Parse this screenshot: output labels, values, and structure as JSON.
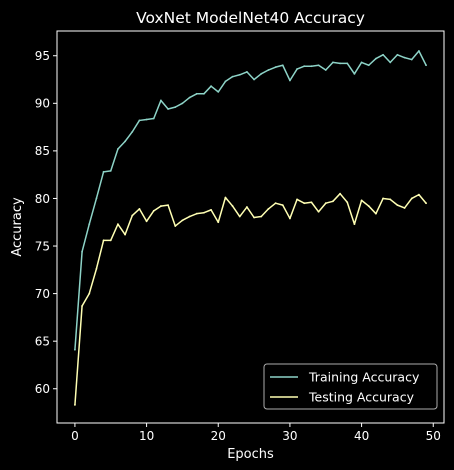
{
  "chart_data": {
    "type": "line",
    "title": "VoxNet ModelNet40 Accuracy",
    "xlabel": "Epochs",
    "ylabel": "Accuracy",
    "xlim": [
      -2.5,
      51.5
    ],
    "ylim": [
      56.4,
      97.6
    ],
    "xticks": [
      0,
      10,
      20,
      30,
      40,
      50
    ],
    "yticks": [
      60,
      65,
      70,
      75,
      80,
      85,
      90,
      95
    ],
    "grid": false,
    "legend_position": "lower-right",
    "x": [
      0,
      1,
      2,
      3,
      4,
      5,
      6,
      7,
      8,
      9,
      10,
      11,
      12,
      13,
      14,
      15,
      16,
      17,
      18,
      19,
      20,
      21,
      22,
      23,
      24,
      25,
      26,
      27,
      28,
      29,
      30,
      31,
      32,
      33,
      34,
      35,
      36,
      37,
      38,
      39,
      40,
      41,
      42,
      43,
      44,
      45,
      46,
      47,
      48,
      49
    ],
    "series": [
      {
        "name": "Training Accuracy",
        "color": "#8dd3c7",
        "values": [
          64.1,
          74.4,
          77.3,
          80.0,
          82.8,
          82.9,
          85.2,
          86.0,
          87.0,
          88.2,
          88.3,
          88.4,
          90.3,
          89.4,
          89.6,
          90.0,
          90.6,
          91.0,
          91.0,
          91.8,
          91.2,
          92.3,
          92.8,
          93.0,
          93.3,
          92.5,
          93.1,
          93.5,
          93.8,
          94.0,
          92.4,
          93.6,
          93.9,
          93.9,
          94.0,
          93.5,
          94.3,
          94.2,
          94.2,
          93.1,
          94.3,
          94.0,
          94.7,
          95.1,
          94.3,
          95.1,
          94.8,
          94.6,
          95.5,
          94.0
        ]
      },
      {
        "name": "Testing Accuracy",
        "color": "#ffffb3",
        "values": [
          58.3,
          68.7,
          70.0,
          72.6,
          75.6,
          75.6,
          77.3,
          76.2,
          78.2,
          78.9,
          77.6,
          78.7,
          79.2,
          79.3,
          77.1,
          77.7,
          78.1,
          78.4,
          78.5,
          78.8,
          77.5,
          80.1,
          79.2,
          78.1,
          79.1,
          78.0,
          78.1,
          78.9,
          79.5,
          79.3,
          77.9,
          79.9,
          79.5,
          79.6,
          78.6,
          79.5,
          79.7,
          80.5,
          79.6,
          77.3,
          79.8,
          79.2,
          78.4,
          80.0,
          79.9,
          79.3,
          79.0,
          80.0,
          80.4,
          79.5
        ]
      }
    ]
  }
}
